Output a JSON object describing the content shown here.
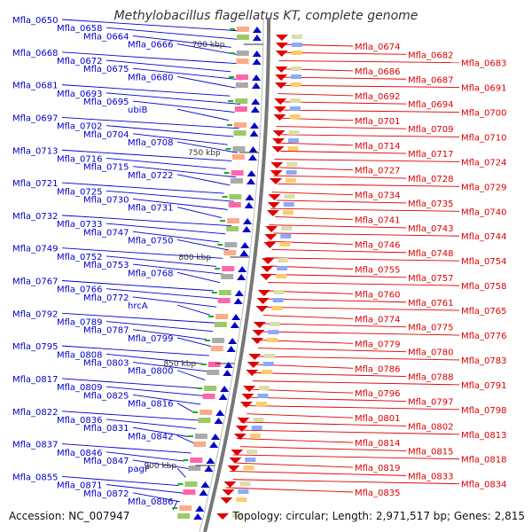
{
  "title": "Methylobacillus flagellatus KT, complete genome",
  "footer": {
    "accession": "Accession: NC_007947",
    "topology": "Topology: circular; Length: 2,971,517 bp; Genes: 2,815"
  },
  "colors": {
    "left": "#0000cc",
    "right": "#dd0000",
    "backbone": "#888888"
  },
  "kbp_markers": [
    "700 kbp",
    "750 kbp",
    "800 kbp",
    "850 kbp",
    "900 kbp"
  ],
  "left_labels": [
    "Mfla_0650",
    "Mfla_0658",
    "Mfla_0664",
    "Mfla_0666",
    "Mfla_0668",
    "Mfla_0672",
    "Mfla_0675",
    "Mfla_0680",
    "Mfla_0681",
    "Mfla_0693",
    "Mfla_0695",
    "ubiB",
    "Mfla_0697",
    "Mfla_0702",
    "Mfla_0704",
    "Mfla_0708",
    "Mfla_0713",
    "Mfla_0716",
    "Mfla_0715",
    "Mfla_0722",
    "Mfla_0721",
    "Mfla_0725",
    "Mfla_0730",
    "Mfla_0731",
    "Mfla_0732",
    "Mfla_0733",
    "Mfla_0747",
    "Mfla_0750",
    "Mfla_0749",
    "Mfla_0752",
    "Mfla_0753",
    "Mfla_0768",
    "Mfla_0767",
    "Mfla_0766",
    "Mfla_0772",
    "hrcA",
    "Mfla_0792",
    "Mfla_0789",
    "Mfla_0787",
    "Mfla_0799",
    "Mfla_0795",
    "Mfla_0808",
    "Mfla_0803",
    "Mfla_0800",
    "Mfla_0817",
    "Mfla_0809",
    "Mfla_0825",
    "Mfla_0816",
    "Mfla_0822",
    "Mfla_0836",
    "Mfla_0831",
    "Mfla_0842",
    "Mfla_0837",
    "Mfla_0846",
    "Mfla_0847",
    "pagP",
    "Mfla_0855",
    "Mfla_0871",
    "Mfla_0872",
    "Mfla_0886"
  ],
  "right_labels": [
    "Mfla_0674",
    "Mfla_0682",
    "Mfla_0683",
    "Mfla_0686",
    "Mfla_0687",
    "Mfla_0691",
    "Mfla_0692",
    "Mfla_0694",
    "Mfla_0700",
    "Mfla_0701",
    "Mfla_0709",
    "Mfla_0710",
    "Mfla_0714",
    "Mfla_0717",
    "Mfla_0724",
    "Mfla_0727",
    "Mfla_0728",
    "Mfla_0729",
    "Mfla_0734",
    "Mfla_0735",
    "Mfla_0740",
    "Mfla_0741",
    "Mfla_0743",
    "Mfla_0744",
    "Mfla_0746",
    "Mfla_0748",
    "Mfla_0754",
    "Mfla_0755",
    "Mfla_0757",
    "Mfla_0758",
    "Mfla_0760",
    "Mfla_0761",
    "Mfla_0765",
    "Mfla_0774",
    "Mfla_0775",
    "Mfla_0776",
    "Mfla_0779",
    "Mfla_0780",
    "Mfla_0783",
    "Mfla_0786",
    "Mfla_0788",
    "Mfla_0791",
    "Mfla_0796",
    "Mfla_0797",
    "Mfla_0798",
    "Mfla_0801",
    "Mfla_0802",
    "Mfla_0813",
    "Mfla_0814",
    "Mfla_0815",
    "Mfla_0818",
    "Mfla_0819",
    "Mfla_0833",
    "Mfla_0834",
    "Mfla_0835"
  ]
}
